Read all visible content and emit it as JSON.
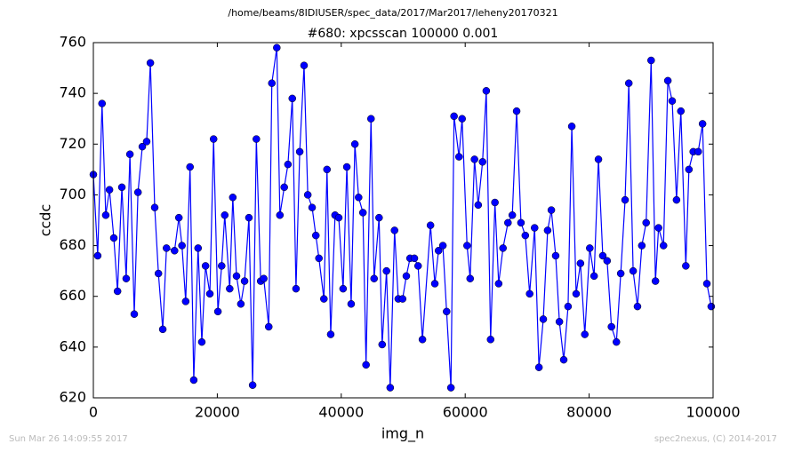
{
  "chart_data": {
    "type": "line",
    "suptitle": "/home/beams/8IDIUSER/spec_data/2017/Mar2017/leheny20170321",
    "title": "#680: xpcsscan 100000 0.001",
    "xlabel": "img_n",
    "ylabel": "ccdc",
    "footer_left": "Sun Mar 26 14:09:55 2017",
    "footer_right": "spec2nexus, (C) 2014-2017",
    "xlim": [
      0,
      100000
    ],
    "xticks": [
      0,
      20000,
      40000,
      60000,
      80000,
      100000
    ],
    "ylim": [
      620,
      760
    ],
    "yticks": [
      620,
      640,
      660,
      680,
      700,
      720,
      740,
      760
    ],
    "grid": false,
    "x": [
      0,
      700,
      1400,
      2000,
      2600,
      3300,
      3900,
      4600,
      5300,
      5900,
      6600,
      7200,
      7900,
      8600,
      9200,
      9900,
      10500,
      11200,
      11800,
      13100,
      13800,
      14300,
      14900,
      15600,
      16200,
      16900,
      17500,
      18100,
      18800,
      19400,
      20100,
      20700,
      21200,
      22000,
      22500,
      23100,
      23800,
      24400,
      25100,
      25700,
      26300,
      27000,
      27500,
      28300,
      28800,
      29600,
      30100,
      30800,
      31400,
      32100,
      32700,
      33300,
      34000,
      34600,
      35300,
      35900,
      36400,
      37200,
      37700,
      38300,
      39000,
      39600,
      40300,
      40900,
      41600,
      42200,
      42800,
      43500,
      44000,
      44800,
      45300,
      46100,
      46600,
      47300,
      47900,
      48600,
      49200,
      49900,
      50500,
      51100,
      51800,
      52400,
      53100,
      54400,
      55100,
      55700,
      56400,
      57000,
      57700,
      58200,
      59000,
      59500,
      60300,
      60800,
      61500,
      62100,
      62800,
      63400,
      64100,
      64800,
      65400,
      66100,
      66900,
      67600,
      68300,
      69000,
      69700,
      70400,
      71200,
      71900,
      72600,
      73300,
      73900,
      74600,
      75200,
      75900,
      76600,
      77200,
      77900,
      78600,
      79300,
      80100,
      80800,
      81500,
      82200,
      82900,
      83600,
      84400,
      85100,
      85800,
      86400,
      87100,
      87800,
      88500,
      89200,
      90000,
      90700,
      91200,
      92000,
      92700,
      93400,
      94100,
      94800,
      95600,
      96100,
      96800,
      97600,
      98300,
      99000,
      99700
    ],
    "series": [
      {
        "name": "ccdc",
        "color": "#0000ff",
        "values": [
          708,
          676,
          736,
          692,
          702,
          683,
          662,
          703,
          667,
          716,
          653,
          701,
          719,
          721,
          752,
          695,
          669,
          647,
          679,
          678,
          691,
          680,
          658,
          711,
          627,
          679,
          642,
          672,
          661,
          722,
          654,
          672,
          692,
          663,
          699,
          668,
          657,
          666,
          691,
          625,
          722,
          666,
          667,
          648,
          744,
          758,
          692,
          703,
          712,
          738,
          663,
          717,
          751,
          700,
          695,
          684,
          675,
          659,
          710,
          645,
          692,
          691,
          663,
          711,
          657,
          720,
          699,
          693,
          633,
          730,
          667,
          691,
          641,
          670,
          624,
          686,
          659,
          659,
          668,
          675,
          675,
          672,
          643,
          688,
          665,
          678,
          680,
          654,
          624,
          731,
          715,
          730,
          680,
          667,
          714,
          696,
          713,
          741,
          643,
          697,
          665,
          679,
          689,
          692,
          733,
          689,
          684,
          661,
          687,
          632,
          651,
          686,
          694,
          676,
          650,
          635,
          656,
          727,
          661,
          673,
          645,
          679,
          668,
          714,
          676,
          674,
          648,
          642,
          669,
          698,
          744,
          670,
          656,
          680,
          689,
          753,
          666,
          687,
          680,
          745,
          737,
          698,
          733,
          672,
          710,
          717,
          717,
          728,
          665,
          656
        ]
      }
    ]
  }
}
